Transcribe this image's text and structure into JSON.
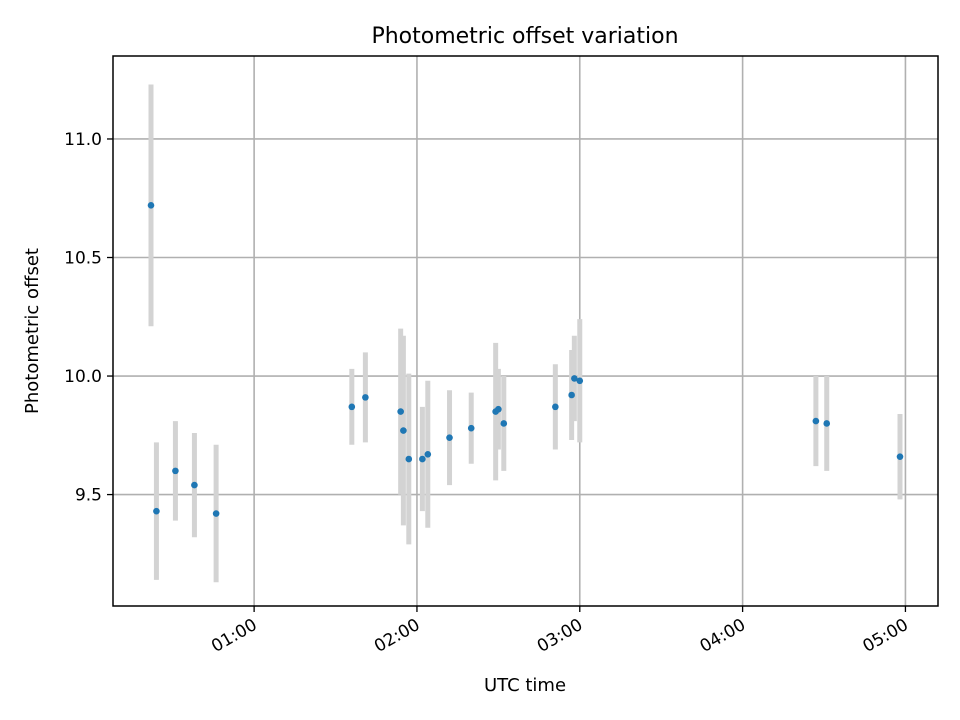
{
  "chart_data": {
    "type": "scatter",
    "title": "Photometric offset variation",
    "xlabel": "UTC time",
    "ylabel": "Photometric offset",
    "x_axis": "time",
    "xlim": [
      "00:08",
      "05:12"
    ],
    "ylim": [
      9.03,
      11.35
    ],
    "x_ticks": [
      "01:00",
      "02:00",
      "03:00",
      "04:00",
      "05:00"
    ],
    "y_ticks": [
      9.5,
      10.0,
      10.5,
      11.0
    ],
    "y_tick_labels": [
      "9.5",
      "10.0",
      "10.5",
      "11.0"
    ],
    "grid": true,
    "colors": {
      "point": "#1f77b4",
      "errorbar": "#d3d3d3",
      "grid": "#b0b0b0"
    },
    "series": [
      {
        "points": [
          {
            "t": "00:22",
            "y": 10.72,
            "err": 0.51
          },
          {
            "t": "00:24",
            "y": 9.43,
            "err": 0.29
          },
          {
            "t": "00:31",
            "y": 9.6,
            "err": 0.21
          },
          {
            "t": "00:38",
            "y": 9.54,
            "err": 0.22
          },
          {
            "t": "00:46",
            "y": 9.42,
            "err": 0.29
          },
          {
            "t": "01:36",
            "y": 9.87,
            "err": 0.16
          },
          {
            "t": "01:41",
            "y": 9.91,
            "err": 0.19
          },
          {
            "t": "01:54",
            "y": 9.85,
            "err": 0.35
          },
          {
            "t": "01:55",
            "y": 9.77,
            "err": 0.4
          },
          {
            "t": "01:57",
            "y": 9.65,
            "err": 0.36
          },
          {
            "t": "02:02",
            "y": 9.65,
            "err": 0.22
          },
          {
            "t": "02:04",
            "y": 9.67,
            "err": 0.31
          },
          {
            "t": "02:12",
            "y": 9.74,
            "err": 0.2
          },
          {
            "t": "02:20",
            "y": 9.78,
            "err": 0.15
          },
          {
            "t": "02:29",
            "y": 9.85,
            "err": 0.29
          },
          {
            "t": "02:30",
            "y": 9.86,
            "err": 0.17
          },
          {
            "t": "02:32",
            "y": 9.8,
            "err": 0.2
          },
          {
            "t": "02:51",
            "y": 9.87,
            "err": 0.18
          },
          {
            "t": "02:57",
            "y": 9.92,
            "err": 0.19
          },
          {
            "t": "02:58",
            "y": 9.99,
            "err": 0.18
          },
          {
            "t": "03:00",
            "y": 9.98,
            "err": 0.26
          },
          {
            "t": "04:27",
            "y": 9.81,
            "err": 0.19
          },
          {
            "t": "04:31",
            "y": 9.8,
            "err": 0.2
          },
          {
            "t": "04:58",
            "y": 9.66,
            "err": 0.18
          }
        ]
      }
    ]
  }
}
